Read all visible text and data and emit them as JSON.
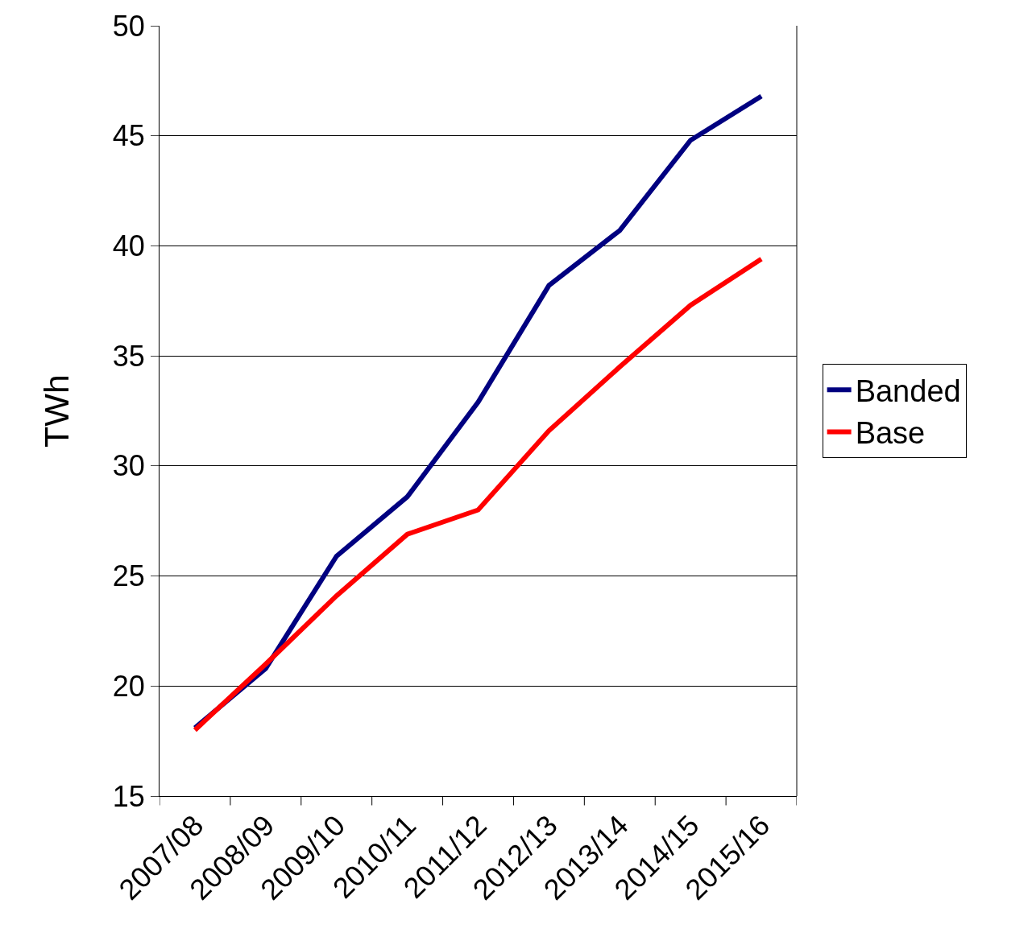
{
  "chart_data": {
    "type": "line",
    "ylabel": "TWh",
    "categories": [
      "2007/08",
      "2008/09",
      "2009/10",
      "2010/11",
      "2011/12",
      "2012/13",
      "2013/14",
      "2014/15",
      "2015/16"
    ],
    "series": [
      {
        "name": "Banded",
        "color": "#000080",
        "values": [
          18.1,
          20.8,
          25.9,
          28.6,
          32.9,
          38.2,
          40.7,
          44.8,
          46.8
        ]
      },
      {
        "name": "Base",
        "color": "#ff0000",
        "values": [
          18.0,
          21.0,
          24.1,
          26.9,
          28.0,
          31.6,
          34.5,
          37.3,
          39.4
        ]
      }
    ],
    "ylim": [
      15,
      50
    ],
    "yticks": [
      15,
      20,
      25,
      30,
      35,
      40,
      45,
      50
    ],
    "grid": "y",
    "legend": "right",
    "marker": "none",
    "line_style": "solid"
  }
}
